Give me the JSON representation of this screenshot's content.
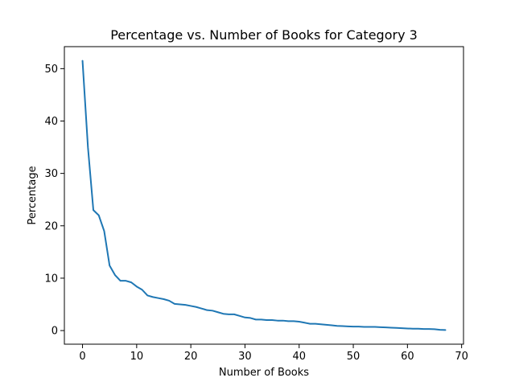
{
  "chart_data": {
    "type": "line",
    "title": "Percentage vs. Number of Books for Category 3",
    "xlabel": "Number of Books",
    "ylabel": "Percentage",
    "xlim": [
      -3.35,
      70.35
    ],
    "ylim": [
      -2.6,
      54.2
    ],
    "xticks": [
      0,
      10,
      20,
      30,
      40,
      50,
      60,
      70
    ],
    "yticks": [
      0,
      10,
      20,
      30,
      40,
      50
    ],
    "grid": false,
    "series": [
      {
        "color": "#1f77b4",
        "x": [
          0,
          1,
          2,
          3,
          4,
          5,
          6,
          7,
          8,
          9,
          10,
          11,
          12,
          13,
          14,
          15,
          16,
          17,
          18,
          19,
          20,
          21,
          22,
          23,
          24,
          25,
          26,
          27,
          28,
          29,
          30,
          31,
          32,
          33,
          34,
          35,
          36,
          37,
          38,
          39,
          40,
          41,
          42,
          43,
          44,
          45,
          46,
          47,
          48,
          49,
          50,
          51,
          52,
          53,
          54,
          55,
          56,
          57,
          58,
          59,
          60,
          61,
          62,
          63,
          64,
          65,
          66,
          67
        ],
        "y": [
          51.5,
          35.0,
          23.0,
          22.0,
          19.0,
          12.4,
          10.6,
          9.5,
          9.5,
          9.2,
          8.4,
          7.8,
          6.7,
          6.4,
          6.2,
          6.0,
          5.7,
          5.1,
          5.0,
          4.9,
          4.7,
          4.5,
          4.2,
          3.9,
          3.8,
          3.5,
          3.2,
          3.1,
          3.1,
          2.8,
          2.5,
          2.4,
          2.1,
          2.1,
          2.0,
          2.0,
          1.9,
          1.9,
          1.8,
          1.8,
          1.7,
          1.5,
          1.3,
          1.3,
          1.2,
          1.1,
          1.0,
          0.9,
          0.85,
          0.8,
          0.75,
          0.75,
          0.7,
          0.7,
          0.7,
          0.65,
          0.6,
          0.55,
          0.5,
          0.45,
          0.4,
          0.35,
          0.35,
          0.3,
          0.3,
          0.25,
          0.15,
          0.1
        ]
      }
    ]
  }
}
